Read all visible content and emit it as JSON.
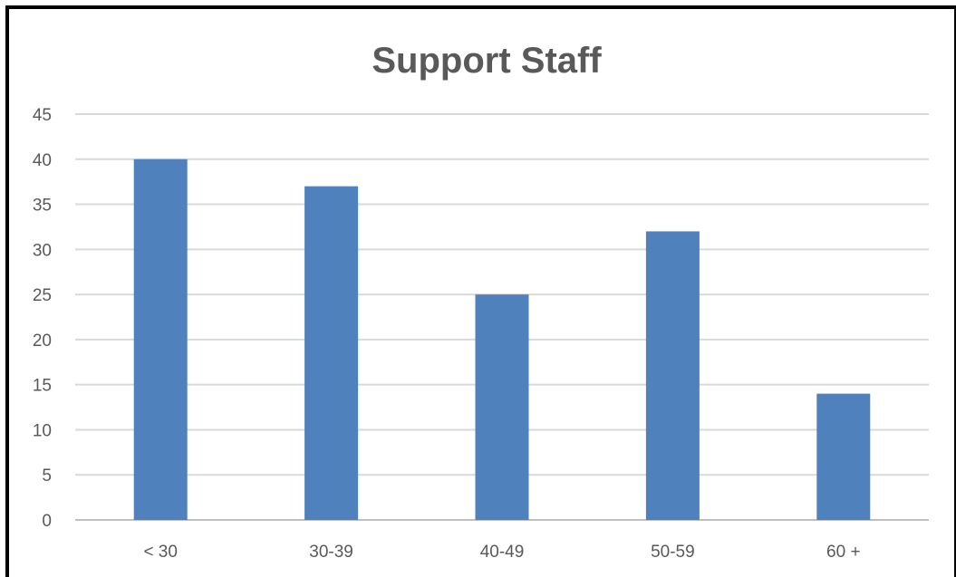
{
  "chart_data": {
    "type": "bar",
    "title": "Support Staff",
    "xlabel": "",
    "ylabel": "",
    "categories": [
      "< 30",
      "30-39",
      "40-49",
      "50-59",
      "60 +"
    ],
    "values": [
      40,
      37,
      25,
      32,
      14
    ],
    "ylim": [
      0,
      45
    ],
    "yticks": [
      0,
      5,
      10,
      15,
      20,
      25,
      30,
      35,
      40,
      45
    ],
    "grid": true,
    "legend": "none",
    "colors": {
      "bar": "#4F81BD",
      "grid": "#D9D9D9",
      "axis": "#BFBFBF",
      "text": "#595959",
      "border": "#000000"
    }
  }
}
